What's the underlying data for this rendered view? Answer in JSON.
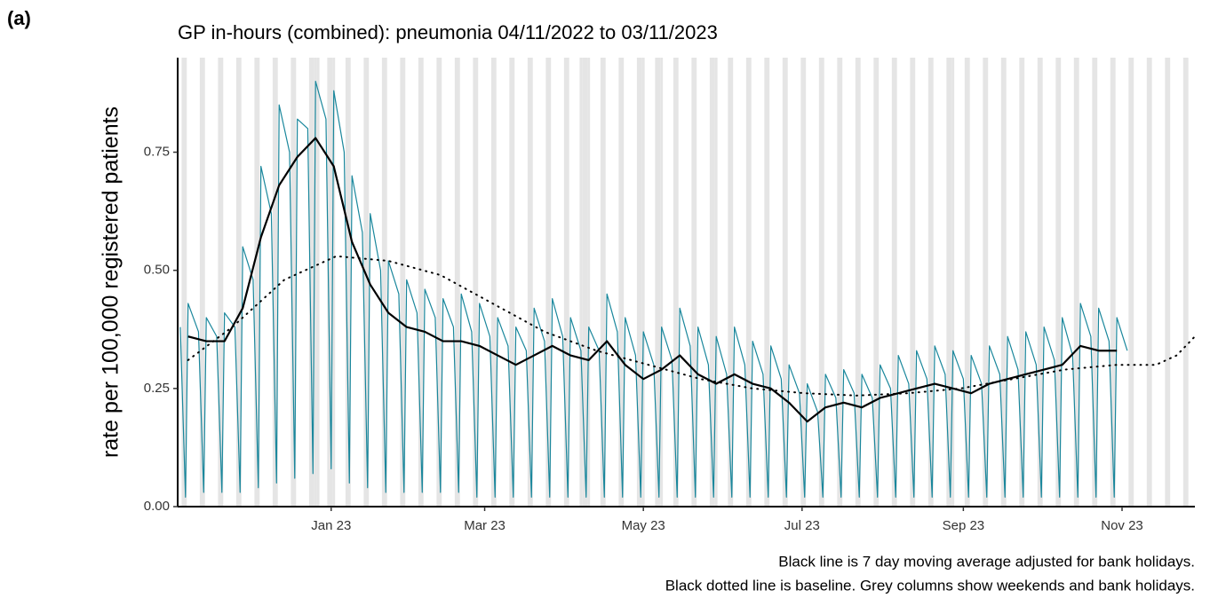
{
  "chart_data": {
    "type": "line",
    "panel_label": "(a)",
    "title": "GP in-hours (combined): pneumonia 04/11/2022 to 03/11/2023",
    "y_label": "rate per 100,000 registered patients",
    "notes": [
      "Black line is 7 day moving average adjusted for bank holidays.",
      "Black dotted line is baseline. Grey columns show weekends and bank holidays."
    ],
    "xlim": [
      -1,
      390
    ],
    "xticks": [
      {
        "value": 58,
        "label": "Jan 23"
      },
      {
        "value": 117,
        "label": "Mar 23"
      },
      {
        "value": 178,
        "label": "May 23"
      },
      {
        "value": 239,
        "label": "Jul 23"
      },
      {
        "value": 301,
        "label": "Sep 23"
      },
      {
        "value": 362,
        "label": "Nov 23"
      }
    ],
    "ylim": [
      0,
      0.95
    ],
    "yticks": [
      {
        "value": 0,
        "label": "0.00"
      },
      {
        "value": 0.25,
        "label": "0.25"
      },
      {
        "value": 0.5,
        "label": "0.50"
      },
      {
        "value": 0.75,
        "label": "0.75"
      }
    ],
    "grid": false,
    "shaded_columns": {
      "color": "#e5e5e5",
      "weekend_starts": [
        1,
        8,
        15,
        22,
        29,
        36,
        43,
        50,
        57,
        64,
        71,
        78,
        85,
        92,
        99,
        106,
        113,
        120,
        127,
        134,
        141,
        148,
        155,
        162,
        169,
        176,
        183,
        190,
        197,
        204,
        211,
        218,
        225,
        232,
        239,
        246,
        253,
        260,
        267,
        274,
        281,
        288,
        295,
        302,
        309,
        316,
        323,
        330,
        337,
        344,
        351,
        358,
        365,
        372,
        379,
        386
      ],
      "bank_holidays": [
        52,
        53,
        59,
        154,
        157,
        178,
        185,
        206,
        297
      ]
    },
    "series": [
      {
        "color": "#1a879c",
        "line_width": 1.2,
        "line_style": "solid",
        "x": [
          0,
          2,
          3,
          7,
          9,
          10,
          14,
          16,
          17,
          21,
          23,
          24,
          28,
          30,
          31,
          35,
          37,
          38,
          42,
          44,
          45,
          49,
          51,
          52,
          56,
          58,
          59,
          63,
          65,
          66,
          70,
          72,
          73,
          77,
          79,
          80,
          84,
          86,
          87,
          91,
          93,
          94,
          98,
          100,
          101,
          105,
          107,
          108,
          112,
          114,
          115,
          119,
          121,
          122,
          126,
          128,
          129,
          133,
          135,
          136,
          140,
          142,
          143,
          147,
          149,
          150,
          154,
          156,
          157,
          161,
          163,
          164,
          168,
          170,
          171,
          175,
          177,
          178,
          182,
          184,
          185,
          189,
          191,
          192,
          196,
          198,
          199,
          203,
          205,
          206,
          210,
          212,
          213,
          217,
          219,
          220,
          224,
          226,
          227,
          231,
          233,
          234,
          238,
          240,
          241,
          245,
          247,
          248,
          252,
          254,
          255,
          259,
          261,
          262,
          266,
          268,
          269,
          273,
          275,
          276,
          280,
          282,
          283,
          287,
          289,
          290,
          294,
          296,
          297,
          301,
          303,
          304,
          308,
          310,
          311,
          315,
          317,
          318,
          322,
          324,
          325,
          329,
          331,
          332,
          336,
          338,
          339,
          343,
          345,
          346,
          350,
          352,
          353,
          357,
          359,
          360,
          364
        ],
        "values": [
          0.38,
          0.02,
          0.43,
          0.37,
          0.03,
          0.4,
          0.36,
          0.03,
          0.41,
          0.38,
          0.03,
          0.55,
          0.48,
          0.04,
          0.72,
          0.62,
          0.05,
          0.85,
          0.75,
          0.06,
          0.82,
          0.8,
          0.07,
          0.9,
          0.82,
          0.08,
          0.88,
          0.75,
          0.05,
          0.7,
          0.58,
          0.04,
          0.62,
          0.5,
          0.03,
          0.52,
          0.45,
          0.03,
          0.48,
          0.41,
          0.03,
          0.46,
          0.4,
          0.03,
          0.44,
          0.38,
          0.03,
          0.45,
          0.37,
          0.02,
          0.43,
          0.36,
          0.02,
          0.4,
          0.34,
          0.02,
          0.38,
          0.33,
          0.02,
          0.42,
          0.35,
          0.02,
          0.44,
          0.36,
          0.02,
          0.4,
          0.33,
          0.02,
          0.38,
          0.33,
          0.02,
          0.45,
          0.37,
          0.02,
          0.4,
          0.32,
          0.02,
          0.37,
          0.3,
          0.02,
          0.38,
          0.31,
          0.02,
          0.42,
          0.34,
          0.02,
          0.38,
          0.3,
          0.02,
          0.36,
          0.28,
          0.02,
          0.38,
          0.3,
          0.02,
          0.35,
          0.28,
          0.02,
          0.34,
          0.27,
          0.02,
          0.3,
          0.24,
          0.02,
          0.26,
          0.2,
          0.02,
          0.28,
          0.23,
          0.02,
          0.29,
          0.24,
          0.02,
          0.28,
          0.23,
          0.02,
          0.3,
          0.25,
          0.02,
          0.32,
          0.26,
          0.02,
          0.33,
          0.27,
          0.02,
          0.34,
          0.28,
          0.02,
          0.33,
          0.27,
          0.02,
          0.32,
          0.26,
          0.02,
          0.34,
          0.28,
          0.02,
          0.36,
          0.29,
          0.02,
          0.37,
          0.3,
          0.02,
          0.38,
          0.31,
          0.02,
          0.4,
          0.32,
          0.02,
          0.43,
          0.36,
          0.02,
          0.42,
          0.35,
          0.02,
          0.4,
          0.33
        ]
      },
      {
        "color": "#000000",
        "line_width": 2.2,
        "line_style": "solid",
        "x": [
          3,
          10,
          17,
          24,
          31,
          38,
          45,
          52,
          59,
          66,
          73,
          80,
          87,
          94,
          101,
          108,
          115,
          122,
          129,
          136,
          143,
          150,
          157,
          164,
          171,
          178,
          185,
          192,
          199,
          206,
          213,
          220,
          227,
          234,
          241,
          248,
          255,
          262,
          269,
          276,
          283,
          290,
          297,
          304,
          311,
          318,
          325,
          332,
          339,
          346,
          353,
          360
        ],
        "values": [
          0.36,
          0.35,
          0.35,
          0.42,
          0.57,
          0.68,
          0.74,
          0.78,
          0.72,
          0.56,
          0.47,
          0.41,
          0.38,
          0.37,
          0.35,
          0.35,
          0.34,
          0.32,
          0.3,
          0.32,
          0.34,
          0.32,
          0.31,
          0.35,
          0.3,
          0.27,
          0.29,
          0.32,
          0.28,
          0.26,
          0.28,
          0.26,
          0.25,
          0.22,
          0.18,
          0.21,
          0.22,
          0.21,
          0.23,
          0.24,
          0.25,
          0.26,
          0.25,
          0.24,
          0.26,
          0.27,
          0.28,
          0.29,
          0.3,
          0.34,
          0.33,
          0.33
        ]
      },
      {
        "color": "#000000",
        "line_width": 2,
        "line_style": "dotted",
        "x": [
          3,
          20,
          40,
          60,
          80,
          100,
          120,
          140,
          160,
          180,
          200,
          220,
          240,
          260,
          280,
          300,
          320,
          340,
          360,
          375,
          383,
          390
        ],
        "values": [
          0.31,
          0.38,
          0.48,
          0.53,
          0.52,
          0.49,
          0.43,
          0.37,
          0.33,
          0.3,
          0.27,
          0.25,
          0.24,
          0.235,
          0.24,
          0.25,
          0.27,
          0.29,
          0.3,
          0.3,
          0.32,
          0.36
        ]
      }
    ]
  }
}
